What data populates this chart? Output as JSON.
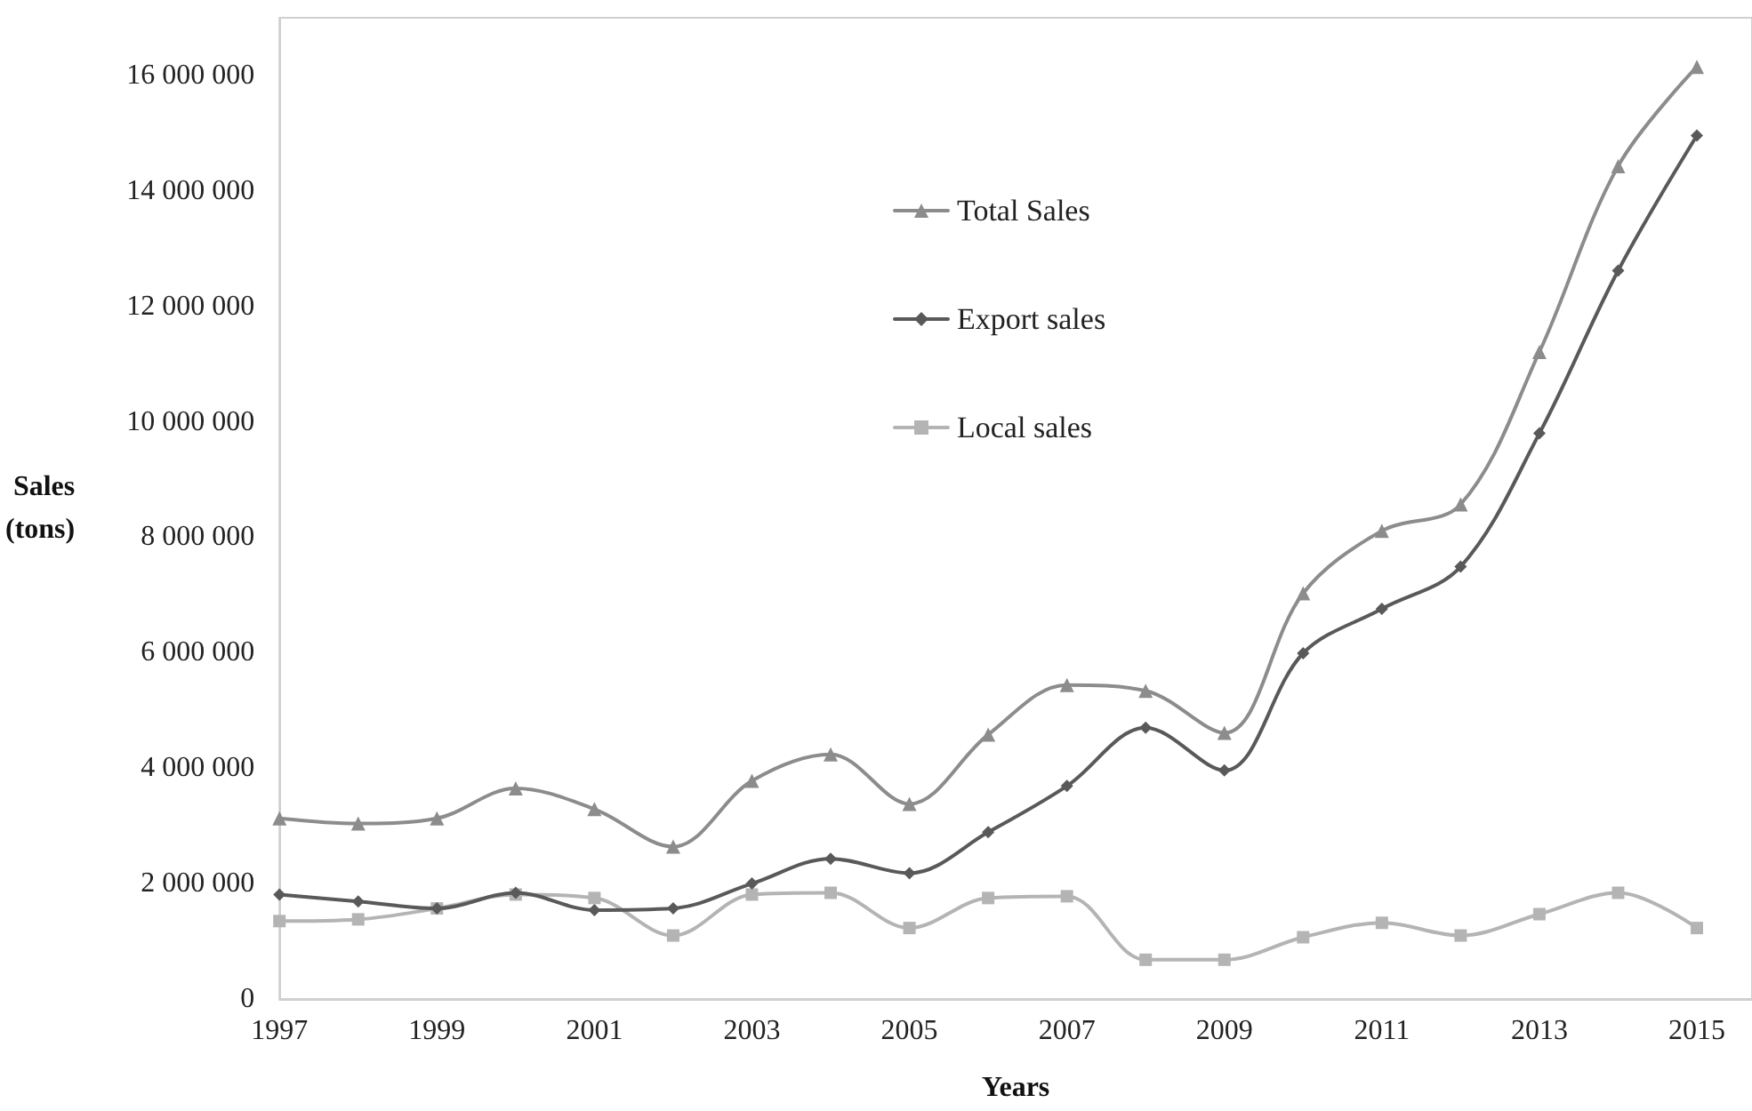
{
  "chart_data": {
    "type": "line",
    "xlabel": "Years",
    "ylabel": "Sales\n(tons)",
    "x": [
      1997,
      1998,
      1999,
      2000,
      2001,
      2002,
      2003,
      2004,
      2005,
      2006,
      2007,
      2008,
      2009,
      2010,
      2011,
      2012,
      2013,
      2014,
      2015
    ],
    "series": [
      {
        "name": "Total Sales",
        "color": "#8c8c8c",
        "marker": "triangle",
        "values": [
          3130000,
          3040000,
          3130000,
          3650000,
          3290000,
          2640000,
          3780000,
          4240000,
          3380000,
          4580000,
          5440000,
          5340000,
          4610000,
          7030000,
          8110000,
          8570000,
          11210000,
          14430000,
          16150000
        ]
      },
      {
        "name": "Export sales",
        "color": "#595959",
        "marker": "diamond",
        "values": [
          1810000,
          1690000,
          1570000,
          1840000,
          1540000,
          1570000,
          2000000,
          2430000,
          2180000,
          2890000,
          3690000,
          4700000,
          3960000,
          5990000,
          6760000,
          7490000,
          9800000,
          12620000,
          14960000
        ]
      },
      {
        "name": "Local sales",
        "color": "#b4b4b4",
        "marker": "square",
        "values": [
          1350000,
          1380000,
          1570000,
          1810000,
          1750000,
          1100000,
          1810000,
          1840000,
          1230000,
          1750000,
          1780000,
          680000,
          680000,
          1070000,
          1320000,
          1100000,
          1470000,
          1840000,
          1230000
        ]
      }
    ],
    "xlim": [
      1997,
      2015.7
    ],
    "xticks": [
      1997,
      1999,
      2001,
      2003,
      2005,
      2007,
      2009,
      2011,
      2013,
      2015
    ],
    "ylim": [
      0,
      17000000
    ],
    "yticks": [
      0,
      2000000,
      4000000,
      6000000,
      8000000,
      10000000,
      12000000,
      14000000,
      16000000
    ],
    "grid": false,
    "legend": "top",
    "line_style": "solid"
  }
}
